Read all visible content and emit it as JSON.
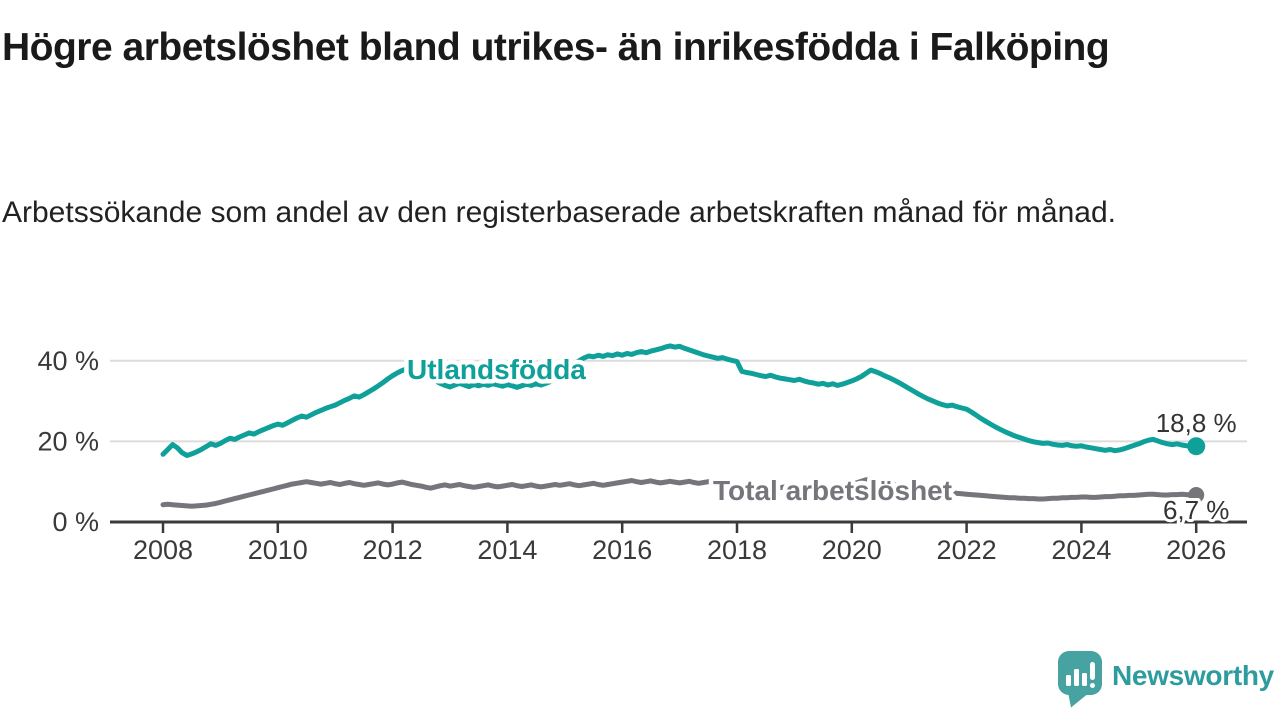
{
  "header": {
    "title": "Högre arbetslöshet bland utrikes- än inrikesfödda i Falköping",
    "subtitle": "Arbetssökande som andel av den registerbaserade arbetskraften månad för månad."
  },
  "chart_data": {
    "type": "line",
    "title": "Högre arbetslöshet bland utrikes- än inrikesfödda i Falköping",
    "subtitle": "Arbetssökande som andel av den registerbaserade arbetskraften månad för månad.",
    "x_start_year": 2008,
    "points_per_year": 12,
    "x_ticks": [
      2008,
      2010,
      2012,
      2014,
      2016,
      2018,
      2020,
      2022,
      2024,
      2026
    ],
    "y_ticks": [
      {
        "value": 0,
        "label": "0 %"
      },
      {
        "value": 20,
        "label": "20 %"
      },
      {
        "value": 40,
        "label": "40 %"
      }
    ],
    "ylim": [
      0,
      46
    ],
    "grid": "horizontal",
    "legend_position": "inline-labels",
    "series": [
      {
        "name": "Total arbetslöshet",
        "color": "#76757c",
        "end_label": "6,7 %",
        "end_value": 6.7,
        "values": [
          4.3,
          4.4,
          4.3,
          4.2,
          4.1,
          4.0,
          3.9,
          4.0,
          4.1,
          4.2,
          4.4,
          4.6,
          4.9,
          5.2,
          5.5,
          5.8,
          6.1,
          6.4,
          6.7,
          7.0,
          7.3,
          7.6,
          7.9,
          8.2,
          8.5,
          8.8,
          9.1,
          9.4,
          9.6,
          9.8,
          10.0,
          9.8,
          9.6,
          9.4,
          9.6,
          9.8,
          9.5,
          9.3,
          9.6,
          9.8,
          9.5,
          9.3,
          9.1,
          9.3,
          9.5,
          9.7,
          9.4,
          9.2,
          9.4,
          9.7,
          9.9,
          9.6,
          9.3,
          9.1,
          8.9,
          8.6,
          8.4,
          8.7,
          9.0,
          9.2,
          8.9,
          9.1,
          9.3,
          9.0,
          8.8,
          8.6,
          8.8,
          9.0,
          9.2,
          8.9,
          8.7,
          8.9,
          9.1,
          9.3,
          9.0,
          8.8,
          9.0,
          9.2,
          8.9,
          8.7,
          8.9,
          9.1,
          9.3,
          9.1,
          9.3,
          9.5,
          9.2,
          9.0,
          9.2,
          9.4,
          9.6,
          9.3,
          9.1,
          9.3,
          9.5,
          9.7,
          9.9,
          10.1,
          10.3,
          10.0,
          9.8,
          10.0,
          10.2,
          9.9,
          9.7,
          9.9,
          10.1,
          9.9,
          9.7,
          9.9,
          10.1,
          9.8,
          9.6,
          9.8,
          10.0,
          9.7,
          9.5,
          9.7,
          9.5,
          9.3,
          9.1,
          8.9,
          8.7,
          8.9,
          8.7,
          8.5,
          8.7,
          8.5,
          8.3,
          8.5,
          8.7,
          8.5,
          8.7,
          8.9,
          8.7,
          8.5,
          8.7,
          8.9,
          9.1,
          8.9,
          8.7,
          8.9,
          9.1,
          9.3,
          9.5,
          9.7,
          10.1,
          10.5,
          10.3,
          10.1,
          9.9,
          9.7,
          9.5,
          9.3,
          9.1,
          8.9,
          8.7,
          8.9,
          8.7,
          8.5,
          8.3,
          8.1,
          7.9,
          7.7,
          7.5,
          7.3,
          7.1,
          7.0,
          6.9,
          6.8,
          6.7,
          6.6,
          6.5,
          6.4,
          6.3,
          6.2,
          6.1,
          6.0,
          6.0,
          5.9,
          5.9,
          5.8,
          5.8,
          5.7,
          5.7,
          5.8,
          5.9,
          5.9,
          6.0,
          6.0,
          6.1,
          6.1,
          6.2,
          6.2,
          6.1,
          6.1,
          6.2,
          6.3,
          6.3,
          6.4,
          6.5,
          6.5,
          6.6,
          6.6,
          6.7,
          6.8,
          6.9,
          6.9,
          6.8,
          6.7,
          6.7,
          6.8,
          6.8,
          6.9,
          6.8,
          6.7,
          6.7
        ]
      },
      {
        "name": "Utlandsfödda",
        "color": "#0fa09a",
        "end_label": "18,8 %",
        "end_value": 18.8,
        "values": [
          16.8,
          18.0,
          19.2,
          18.4,
          17.2,
          16.5,
          16.9,
          17.4,
          18.0,
          18.7,
          19.4,
          19.0,
          19.5,
          20.2,
          20.8,
          20.5,
          21.1,
          21.6,
          22.1,
          21.8,
          22.4,
          22.9,
          23.4,
          23.9,
          24.3,
          24.0,
          24.6,
          25.2,
          25.8,
          26.3,
          26.0,
          26.6,
          27.2,
          27.7,
          28.2,
          28.6,
          29.0,
          29.6,
          30.2,
          30.7,
          31.3,
          31.0,
          31.6,
          32.3,
          33.0,
          33.8,
          34.6,
          35.5,
          36.3,
          37.0,
          37.6,
          38.0,
          37.6,
          37.1,
          36.6,
          36.1,
          35.6,
          35.0,
          34.4,
          33.9,
          33.5,
          34.0,
          34.4,
          34.0,
          33.6,
          34.1,
          33.8,
          34.2,
          33.9,
          34.3,
          34.0,
          33.7,
          34.1,
          33.8,
          33.4,
          33.8,
          34.2,
          33.9,
          34.3,
          34.0,
          34.4,
          34.9,
          35.6,
          36.5,
          37.5,
          38.4,
          39.2,
          40.0,
          40.7,
          41.2,
          41.0,
          41.4,
          41.1,
          41.5,
          41.3,
          41.7,
          41.4,
          41.8,
          41.6,
          42.0,
          42.3,
          42.0,
          42.4,
          42.7,
          43.0,
          43.4,
          43.7,
          43.4,
          43.6,
          43.1,
          42.7,
          42.3,
          41.9,
          41.5,
          41.2,
          40.9,
          40.6,
          40.8,
          40.4,
          40.1,
          39.8,
          37.4,
          37.1,
          36.9,
          36.6,
          36.3,
          36.1,
          36.4,
          36.0,
          35.7,
          35.5,
          35.3,
          35.1,
          35.4,
          35.0,
          34.7,
          34.5,
          34.2,
          34.4,
          34.0,
          34.3,
          33.9,
          34.2,
          34.6,
          35.0,
          35.5,
          36.1,
          36.9,
          37.7,
          37.3,
          36.8,
          36.2,
          35.7,
          35.1,
          34.5,
          33.8,
          33.1,
          32.4,
          31.7,
          31.1,
          30.5,
          30.0,
          29.5,
          29.1,
          28.8,
          29.0,
          28.6,
          28.3,
          28.0,
          27.3,
          26.5,
          25.7,
          25.0,
          24.3,
          23.6,
          23.0,
          22.4,
          21.9,
          21.4,
          21.0,
          20.6,
          20.2,
          19.9,
          19.7,
          19.5,
          19.6,
          19.3,
          19.1,
          19.0,
          19.2,
          18.9,
          18.8,
          18.9,
          18.6,
          18.4,
          18.2,
          18.0,
          17.8,
          18.0,
          17.7,
          17.9,
          18.2,
          18.6,
          19.0,
          19.4,
          19.9,
          20.3,
          20.5,
          20.1,
          19.7,
          19.4,
          19.2,
          19.4,
          19.1,
          18.9,
          18.8,
          18.8
        ]
      }
    ]
  },
  "colors": {
    "grid": "#dcdcdc",
    "axis": "#3a3a3a",
    "axis_text": "#3a3a3a",
    "annotation_text": "#333333",
    "title_text": "#1a1a1a"
  },
  "footer": {
    "brand": "Newsworthy",
    "brand_color": "#2e9c9e",
    "icon_color": "#47a2a2"
  }
}
